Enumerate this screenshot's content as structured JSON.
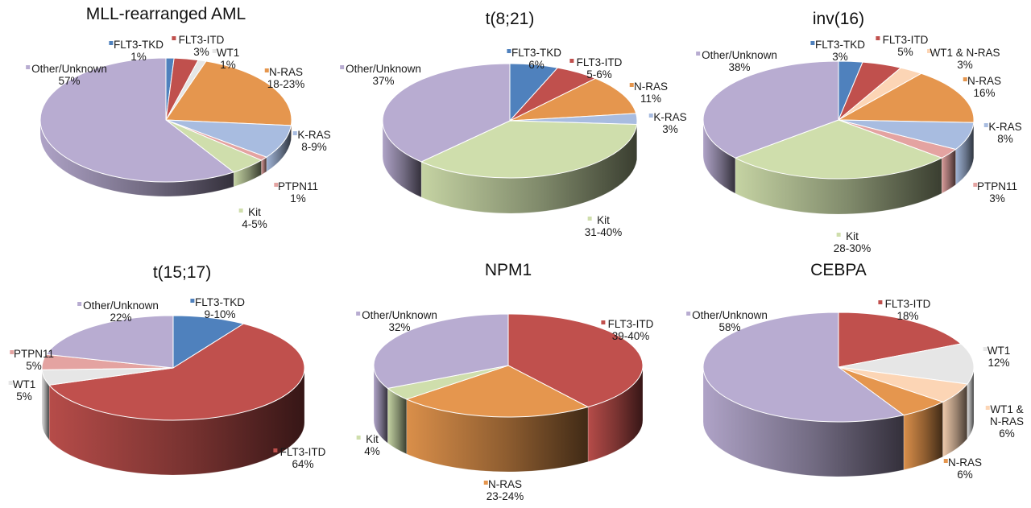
{
  "colors": {
    "FLT3-TKD": "#4f81bd",
    "FLT3-ITD": "#c0504d",
    "WT1": "#e6e6e6",
    "WT1 & N-RAS": "#fcd5b5",
    "N-RAS": "#e5964e",
    "K-RAS": "#a8bce0",
    "PTPN11": "#e4a3a1",
    "Kit": "#cfdeac",
    "Other/Unknown": "#b8acd1"
  },
  "chart_data": [
    {
      "type": "pie",
      "title": "MLL-rearranged AML",
      "slices": [
        {
          "category": "FLT3-TKD",
          "label": "FLT3-TKD",
          "value_text": "1%",
          "value": 1
        },
        {
          "category": "FLT3-ITD",
          "label": "FLT3-ITD",
          "value_text": "3%",
          "value": 3
        },
        {
          "category": "WT1",
          "label": "WT1",
          "value_text": "1%",
          "value": 1
        },
        {
          "category": "N-RAS",
          "label": "N-RAS",
          "value_text": "18-23%",
          "value": 20.5
        },
        {
          "category": "K-RAS",
          "label": "K-RAS",
          "value_text": "8-9%",
          "value": 8.5
        },
        {
          "category": "PTPN11",
          "label": "PTPN11",
          "value_text": "1%",
          "value": 1
        },
        {
          "category": "Kit",
          "label": "Kit",
          "value_text": "4-5%",
          "value": 4.5
        },
        {
          "category": "Other/Unknown",
          "label": "Other/Unknown",
          "value_text": "57%",
          "value": 57
        }
      ]
    },
    {
      "type": "pie",
      "title": "t(8;21)",
      "slices": [
        {
          "category": "FLT3-TKD",
          "label": "FLT3-TKD",
          "value_text": "6%",
          "value": 6
        },
        {
          "category": "FLT3-ITD",
          "label": "FLT3-ITD",
          "value_text": "5-6%",
          "value": 5.5
        },
        {
          "category": "N-RAS",
          "label": "N-RAS",
          "value_text": "11%",
          "value": 11
        },
        {
          "category": "K-RAS",
          "label": "K-RAS",
          "value_text": "3%",
          "value": 3
        },
        {
          "category": "Kit",
          "label": "Kit",
          "value_text": "31-40%",
          "value": 35.5
        },
        {
          "category": "Other/Unknown",
          "label": "Other/Unknown",
          "value_text": "37%",
          "value": 37
        }
      ]
    },
    {
      "type": "pie",
      "title": "inv(16)",
      "slices": [
        {
          "category": "FLT3-TKD",
          "label": "FLT3-TKD",
          "value_text": "3%",
          "value": 3
        },
        {
          "category": "FLT3-ITD",
          "label": "FLT3-ITD",
          "value_text": "5%",
          "value": 5
        },
        {
          "category": "WT1 & N-RAS",
          "label": "WT1 & N-RAS",
          "value_text": "3%",
          "value": 3
        },
        {
          "category": "N-RAS",
          "label": "N-RAS",
          "value_text": "16%",
          "value": 16
        },
        {
          "category": "K-RAS",
          "label": "K-RAS",
          "value_text": "8%",
          "value": 8
        },
        {
          "category": "PTPN11",
          "label": "PTPN11",
          "value_text": "3%",
          "value": 3
        },
        {
          "category": "Kit",
          "label": "Kit",
          "value_text": "28-30%",
          "value": 29
        },
        {
          "category": "Other/Unknown",
          "label": "Other/Unknown",
          "value_text": "38%",
          "value": 38
        }
      ]
    },
    {
      "type": "pie",
      "title": "t(15;17)",
      "slices": [
        {
          "category": "FLT3-TKD",
          "label": "FLT3-TKD",
          "value_text": "9-10%",
          "value": 9.5
        },
        {
          "category": "FLT3-ITD",
          "label": "FLT3-ITD",
          "value_text": "64%",
          "value": 64
        },
        {
          "category": "WT1",
          "label": "WT1",
          "value_text": "5%",
          "value": 5
        },
        {
          "category": "PTPN11",
          "label": "PTPN11",
          "value_text": "5%",
          "value": 5
        },
        {
          "category": "Other/Unknown",
          "label": "Other/Unknown",
          "value_text": "22%",
          "value": 22
        }
      ]
    },
    {
      "type": "pie",
      "title": "NPM1",
      "slices": [
        {
          "category": "FLT3-ITD",
          "label": "FLT3-ITD",
          "value_text": "39-40%",
          "value": 39.5
        },
        {
          "category": "N-RAS",
          "label": "N-RAS",
          "value_text": "23-24%",
          "value": 23.5
        },
        {
          "category": "Kit",
          "label": "Kit",
          "value_text": "4%",
          "value": 4
        },
        {
          "category": "Other/Unknown",
          "label": "Other/Unknown",
          "value_text": "32%",
          "value": 32
        }
      ]
    },
    {
      "type": "pie",
      "title": "CEBPA",
      "slices": [
        {
          "category": "FLT3-ITD",
          "label": "FLT3-ITD",
          "value_text": "18%",
          "value": 18
        },
        {
          "category": "WT1",
          "label": "WT1",
          "value_text": "12%",
          "value": 12
        },
        {
          "category": "WT1 & N-RAS",
          "label": "WT1 &\nN-RAS",
          "value_text": "6%",
          "value": 6
        },
        {
          "category": "N-RAS",
          "label": "N-RAS",
          "value_text": "6%",
          "value": 6
        },
        {
          "category": "Other/Unknown",
          "label": "Other/Unknown",
          "value_text": "58%",
          "value": 58
        }
      ]
    }
  ]
}
